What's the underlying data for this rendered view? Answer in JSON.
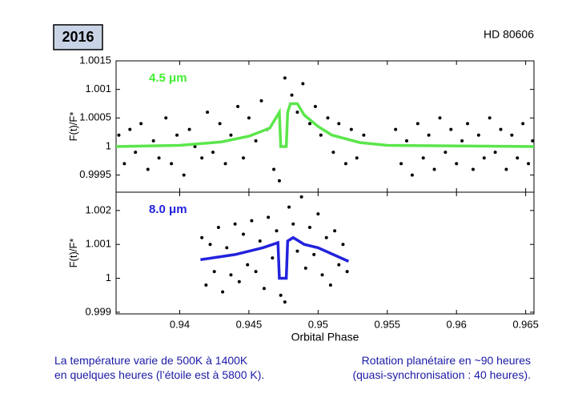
{
  "slide": {
    "badge": "2016",
    "object": "HD 80606",
    "left_note": [
      "La température varie de 500K à 1400K",
      "en quelques heures (l’étoile est à 5800 K)."
    ],
    "right_note": [
      "Rotation planétaire en ~90 heures",
      "(quasi-synchronisation : 40 heures)."
    ]
  },
  "chart_data": [
    {
      "type": "scatter",
      "annotation": "4.5 μm",
      "annotation_color": "#44ee33",
      "ylabel": "F(t)/F*",
      "xlim": [
        0.9354,
        0.9656
      ],
      "ylim": [
        0.9992,
        1.0015
      ],
      "xticks": [
        0.94,
        0.945,
        0.95,
        0.955,
        0.96,
        0.965
      ],
      "yticks": [
        0.9995,
        1,
        1.0005,
        1.001,
        1.0015
      ],
      "points": {
        "color": "#000000",
        "x": [
          0.9356,
          0.936,
          0.9364,
          0.9368,
          0.9372,
          0.9377,
          0.9381,
          0.9385,
          0.939,
          0.9394,
          0.9398,
          0.9403,
          0.9407,
          0.9411,
          0.9416,
          0.942,
          0.9424,
          0.9429,
          0.9433,
          0.9437,
          0.9442,
          0.9446,
          0.945,
          0.9455,
          0.9459,
          0.9463,
          0.9468,
          0.9472,
          0.9476,
          0.9481,
          0.9485,
          0.9489,
          0.9494,
          0.9498,
          0.9502,
          0.9507,
          0.9511,
          0.9515,
          0.952,
          0.9524,
          0.9528,
          0.9533,
          0.9556,
          0.956,
          0.9564,
          0.9568,
          0.9572,
          0.9576,
          0.958,
          0.9584,
          0.9588,
          0.9592,
          0.9596,
          0.96,
          0.9604,
          0.9608,
          0.9612,
          0.9616,
          0.962,
          0.9624,
          0.9628,
          0.9632,
          0.9636,
          0.964,
          0.9644,
          0.9648,
          0.9652,
          0.9655
        ],
        "y": [
          1.0002,
          0.9997,
          1.0003,
          0.9999,
          1.0004,
          0.9996,
          1.0001,
          0.9998,
          1.0005,
          0.9997,
          1.0002,
          0.9995,
          1.0003,
          1.0,
          0.9998,
          1.0006,
          0.9999,
          1.0004,
          0.9997,
          1.0002,
          1.0007,
          0.9998,
          1.0005,
          1.0001,
          1.0008,
          1.0003,
          0.9996,
          0.9994,
          1.0012,
          1.0009,
          1.0006,
          1.0011,
          1.0004,
          1.0007,
          1.0002,
          1.0005,
          0.9999,
          1.0004,
          0.9997,
          1.0003,
          0.9998,
          1.0002,
          1.0003,
          0.9997,
          1.0001,
          0.9995,
          1.0004,
          0.9998,
          1.0002,
          0.9996,
          1.0005,
          0.9999,
          1.0003,
          0.9997,
          1.0001,
          1.0004,
          0.9996,
          1.0002,
          0.9998,
          1.0005,
          0.9999,
          1.0003,
          0.9996,
          1.0002,
          0.9998,
          1.0004,
          0.9997,
          1.0001
        ]
      },
      "model": {
        "color": "#5be64b",
        "x": [
          0.9354,
          0.94,
          0.943,
          0.945,
          0.9465,
          0.9472,
          0.9473,
          0.9477,
          0.9478,
          0.948,
          0.9485,
          0.949,
          0.95,
          0.951,
          0.953,
          0.955,
          0.9656
        ],
        "y": [
          1.0,
          1.00002,
          1.00008,
          1.00018,
          1.00032,
          1.0006,
          1.0,
          1.0,
          1.0006,
          1.00075,
          1.00075,
          1.00055,
          1.00035,
          1.0002,
          1.00007,
          1.00002,
          1.0
        ]
      }
    },
    {
      "type": "scatter",
      "annotation": "8.0 μm",
      "annotation_color": "#2222dd",
      "ylabel": "F(t)/F*",
      "xlabel": "Orbital Phase",
      "xlim": [
        0.9354,
        0.9656
      ],
      "ylim": [
        0.99895,
        1.00254
      ],
      "xticks": [
        0.94,
        0.945,
        0.95,
        0.955,
        0.96,
        0.965
      ],
      "yticks": [
        0.999,
        1,
        1.001,
        1.002
      ],
      "points": {
        "color": "#000000",
        "x": [
          0.9416,
          0.9419,
          0.9422,
          0.9425,
          0.9428,
          0.9431,
          0.9434,
          0.9437,
          0.944,
          0.9443,
          0.9446,
          0.9449,
          0.9452,
          0.9455,
          0.9458,
          0.9461,
          0.9464,
          0.9467,
          0.947,
          0.9473,
          0.9476,
          0.9479,
          0.9482,
          0.9485,
          0.9488,
          0.9491,
          0.9494,
          0.9497,
          0.95,
          0.9503,
          0.9506,
          0.9509,
          0.9512,
          0.9515,
          0.9518,
          0.9521
        ],
        "y": [
          1.0012,
          0.9998,
          1.001,
          1.0002,
          1.0015,
          0.9996,
          1.0009,
          1.0001,
          1.0016,
          0.9999,
          1.0013,
          1.0004,
          1.0017,
          1.0002,
          1.0011,
          0.9997,
          1.0018,
          1.0006,
          1.0014,
          0.9995,
          0.9993,
          1.0021,
          1.0016,
          1.0008,
          1.0024,
          1.0003,
          1.0015,
          1.0007,
          1.0019,
          1.0001,
          1.0012,
          0.9998,
          1.0014,
          1.0004,
          1.001,
          1.0002
        ]
      },
      "model": {
        "color": "#2222dd",
        "x": [
          0.9415,
          0.944,
          0.946,
          0.9471,
          0.9472,
          0.9477,
          0.9478,
          0.9482,
          0.949,
          0.95,
          0.9522
        ],
        "y": [
          1.00055,
          1.0007,
          1.0009,
          1.00105,
          1.0,
          1.0,
          1.0011,
          1.0012,
          1.001,
          1.0009,
          1.0005
        ]
      }
    }
  ]
}
